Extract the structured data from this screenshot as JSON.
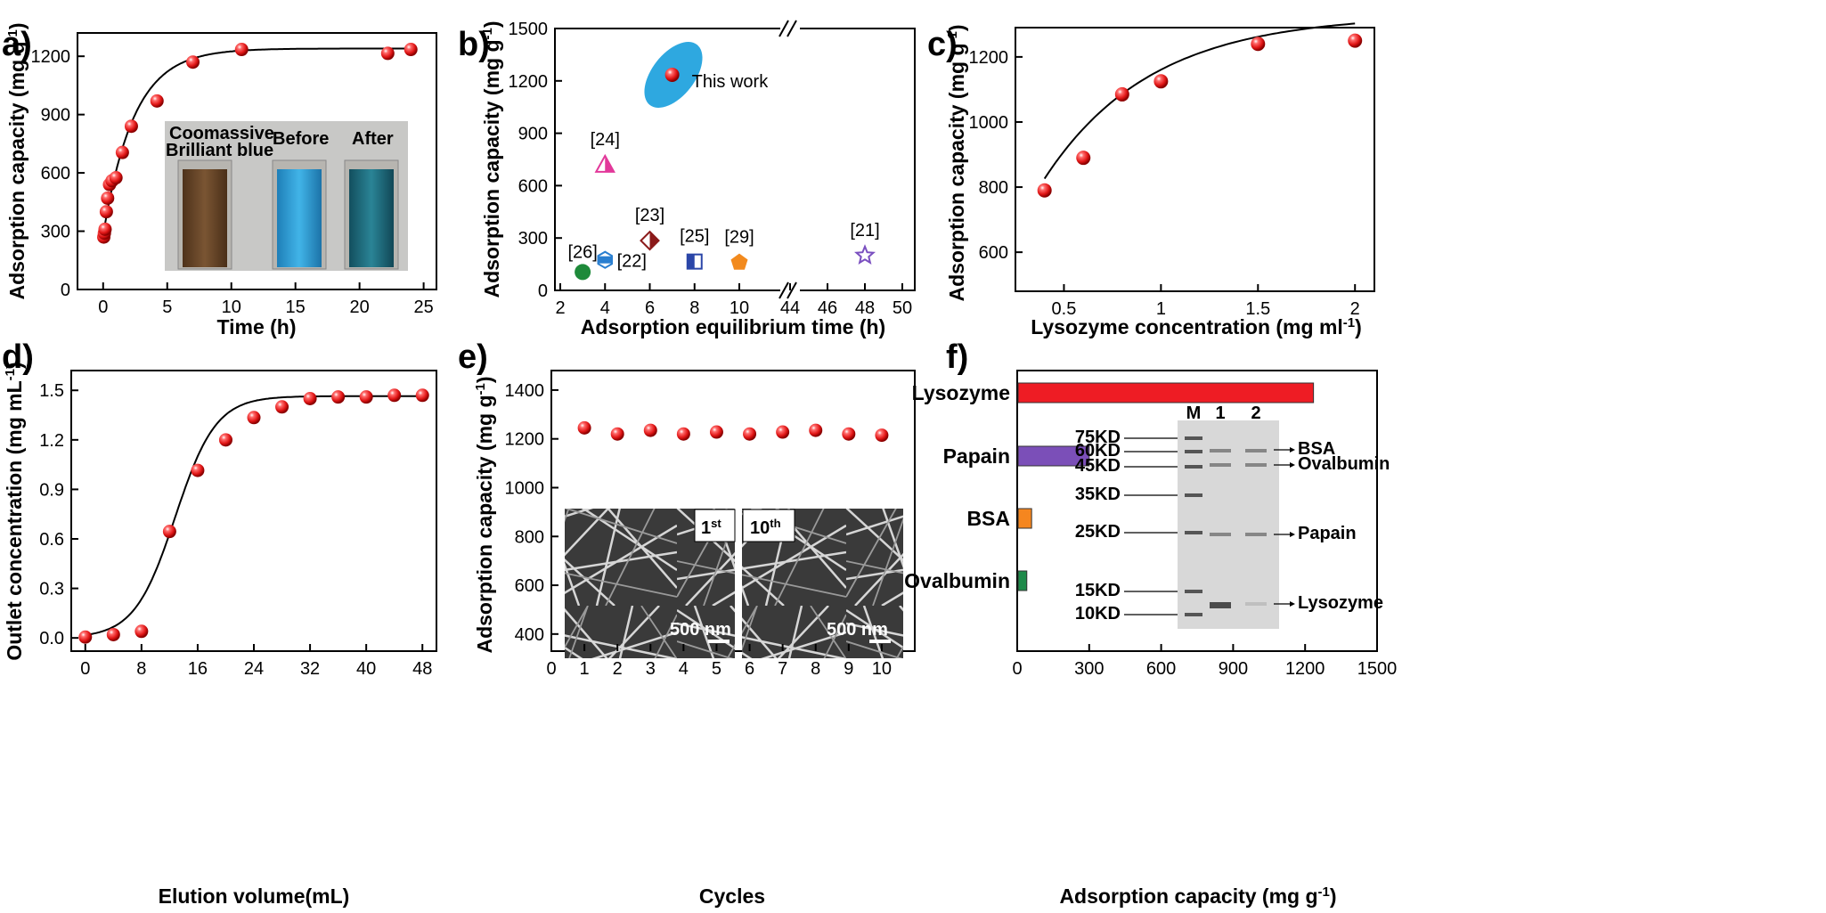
{
  "panels": {
    "a": {
      "label": "a)",
      "xlabel": "Time (h)",
      "ylabel": "Adsorption capacity (mg g",
      "ylabel_sup": "-1",
      "ylabel_end": ")",
      "xlim": [
        -2,
        26
      ],
      "ylim": [
        0,
        1320
      ],
      "xticks": [
        0,
        5,
        10,
        15,
        20,
        25
      ],
      "yticks": [
        0,
        300,
        600,
        900,
        1200
      ],
      "x": [
        0.05,
        0.1,
        0.15,
        0.25,
        0.35,
        0.5,
        0.7,
        1.0,
        1.5,
        2.2,
        4.2,
        7.0,
        10.8,
        22.2,
        24.0
      ],
      "y": [
        270,
        290,
        310,
        400,
        470,
        540,
        560,
        575,
        705,
        840,
        970,
        1170,
        1235,
        1215,
        1235
      ],
      "fit": "exponential",
      "inset": {
        "labels": [
          "Coomassive\nBrilliant blue",
          "Before",
          "After"
        ],
        "colors": [
          "#6e4a2a",
          "#2f9fd6",
          "#1e6f82"
        ]
      }
    },
    "b": {
      "label": "b)",
      "xlabel": "Adsorption equilibrium time (h)",
      "ylabel": "Adsorption capacity (mg g",
      "ylabel_sup": "-1",
      "ylabel_end": ")",
      "ylim": [
        0,
        1500
      ],
      "xticks_left": [
        2,
        4,
        6,
        8,
        10
      ],
      "xticks_right": [
        44,
        46,
        48,
        50
      ],
      "yticks": [
        0,
        300,
        600,
        900,
        1200,
        1500
      ],
      "points": [
        {
          "ref": "This work",
          "x": 7.0,
          "y": 1235,
          "marker": "sphere",
          "color": "#e52020"
        },
        {
          "ref": "[24]",
          "x": 4.0,
          "y": 720,
          "marker": "triangle",
          "color": "#e2389a"
        },
        {
          "ref": "[23]",
          "x": 6.0,
          "y": 285,
          "marker": "diamond",
          "color": "#8b1a1a"
        },
        {
          "ref": "[26]",
          "x": 3.0,
          "y": 105,
          "marker": "circle",
          "color": "#1e8a3a"
        },
        {
          "ref": "[22]",
          "x": 4.0,
          "y": 175,
          "marker": "hexagon",
          "color": "#2a7fd0"
        },
        {
          "ref": "[25]",
          "x": 8.0,
          "y": 165,
          "marker": "square",
          "color": "#2b46a8"
        },
        {
          "ref": "[29]",
          "x": 10.0,
          "y": 160,
          "marker": "pentagon",
          "color": "#f28a1e"
        },
        {
          "ref": "[21]",
          "x": 48.0,
          "y": 200,
          "marker": "star",
          "color": "#7a4fc0"
        }
      ]
    },
    "c": {
      "label": "c)",
      "xlabel": "Lysozyme concentration (mg ml",
      "xlabel_sup": "-1",
      "xlabel_end": ")",
      "ylabel": "Adsorption capacity (mg g",
      "ylabel_sup": "-1",
      "ylabel_end": ")",
      "xlim": [
        0.25,
        2.1
      ],
      "ylim": [
        480,
        1290
      ],
      "xticks": [
        0.5,
        1.0,
        1.5,
        2.0
      ],
      "ytick_labels": [
        "600",
        "800",
        "1000",
        "1200"
      ],
      "yticks": [
        600,
        800,
        1000,
        1200
      ],
      "x": [
        0.4,
        0.6,
        0.8,
        1.0,
        1.5,
        2.0
      ],
      "y": [
        790,
        890,
        1085,
        1125,
        1240,
        1250
      ]
    },
    "d": {
      "label": "d)",
      "xlabel": "Elution volume(mL)",
      "ylabel": "Outlet concentration (mg mL",
      "ylabel_sup": "-1",
      "ylabel_end": ")",
      "xlim": [
        -2,
        50
      ],
      "ylim": [
        -0.08,
        1.62
      ],
      "xticks": [
        0,
        8,
        16,
        24,
        32,
        40,
        48
      ],
      "ytick_labels": [
        "0.0",
        "0.3",
        "0.6",
        "0.9",
        "1.2",
        "1.5"
      ],
      "yticks": [
        0,
        0.3,
        0.6,
        0.9,
        1.2,
        1.5
      ],
      "x": [
        0,
        4,
        8,
        12,
        16,
        20,
        24,
        28,
        32,
        36,
        40,
        44,
        48
      ],
      "y": [
        0.005,
        0.02,
        0.04,
        0.645,
        1.015,
        1.2,
        1.335,
        1.4,
        1.45,
        1.46,
        1.46,
        1.47,
        1.47
      ]
    },
    "e": {
      "label": "e)",
      "xlabel": "Cycles",
      "ylabel": "Adsorption capacity (mg g",
      "ylabel_sup": "-1",
      "ylabel_end": ")",
      "xlim": [
        0,
        11
      ],
      "ylim": [
        330,
        1480
      ],
      "xticks": [
        0,
        1,
        2,
        3,
        4,
        5,
        6,
        7,
        8,
        9,
        10
      ],
      "yticks": [
        400,
        600,
        800,
        1000,
        1200,
        1400
      ],
      "x": [
        1,
        2,
        3,
        4,
        5,
        6,
        7,
        8,
        9,
        10
      ],
      "y": [
        1245,
        1220,
        1235,
        1220,
        1228,
        1220,
        1228,
        1235,
        1220,
        1215
      ],
      "inset": {
        "labels": [
          "1",
          "10"
        ],
        "label_sups": [
          "st",
          "th"
        ],
        "scale": "500 nm"
      }
    },
    "f": {
      "label": "f)",
      "xlabel": "Adsorption capacity (mg g",
      "xlabel_sup": "-1",
      "xlabel_end": ")",
      "xlim": [
        0,
        1500
      ],
      "xticks": [
        0,
        300,
        600,
        900,
        1200,
        1500
      ],
      "categories": [
        "Lysozyme",
        "Papain",
        "BSA",
        "Ovalbumin"
      ],
      "values": [
        1235,
        300,
        60,
        40
      ],
      "colors": [
        "#ee1c24",
        "#7b4fb8",
        "#f5861f",
        "#1e8a4a"
      ],
      "gel": {
        "lanes": [
          "M",
          "1",
          "2"
        ],
        "markers": [
          "75KD",
          "60KD",
          "45KD",
          "35KD",
          "25KD",
          "15KD",
          "10KD"
        ],
        "bands": [
          "BSA",
          "Ovalbumin",
          "Papain",
          "Lysozyme"
        ]
      }
    }
  }
}
